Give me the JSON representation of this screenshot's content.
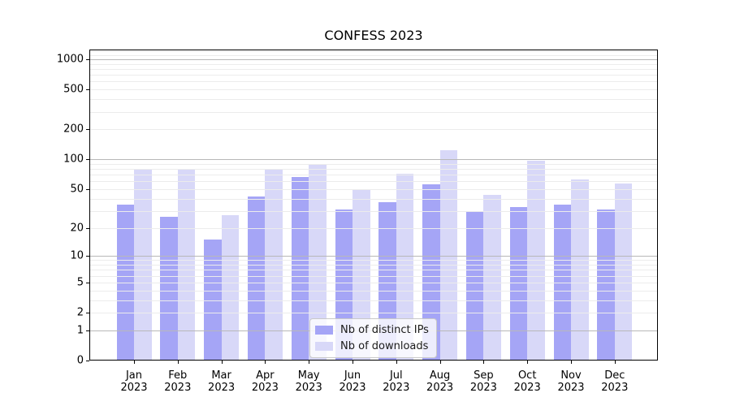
{
  "chart_data": {
    "type": "bar",
    "title": "CONFESS 2023",
    "categories": [
      "Jan 2023",
      "Feb 2023",
      "Mar 2023",
      "Apr 2023",
      "May 2023",
      "Jun 2023",
      "Jul 2023",
      "Aug 2023",
      "Sep 2023",
      "Oct 2023",
      "Nov 2023",
      "Dec 2023"
    ],
    "series": [
      {
        "name": "Nb of distinct IPs",
        "color": "#a5a5f6",
        "values": [
          35,
          26,
          15,
          42,
          66,
          31,
          37,
          56,
          30,
          33,
          35,
          31
        ]
      },
      {
        "name": "Nb of downloads",
        "color": "#d8d8f8",
        "values": [
          78,
          80,
          27,
          79,
          89,
          50,
          72,
          123,
          44,
          96,
          63,
          57
        ]
      }
    ],
    "xlabel": "",
    "ylabel": "",
    "yscale": "log1p",
    "ylim": [
      0,
      1250
    ],
    "yticks": {
      "values": [
        0,
        1,
        2,
        5,
        10,
        20,
        50,
        100,
        200,
        500,
        1000
      ],
      "labels": [
        "0",
        "1",
        "2",
        "5",
        "10",
        "20",
        "50",
        "100",
        "200",
        "500",
        "1000"
      ]
    },
    "major_gridline_values": [
      1,
      10,
      100,
      1000
    ],
    "grid": true,
    "legend": {
      "position": "lower center",
      "items": [
        "Nb of distinct IPs",
        "Nb of downloads"
      ]
    }
  },
  "style": {
    "background": "#ffffff",
    "dark_bar_color": "#a5a5f6",
    "light_bar_color": "#d8d8f8",
    "major_grid_color": "#b8b8b8",
    "minor_grid_color": "#ececec",
    "spine_color": "#000000"
  }
}
